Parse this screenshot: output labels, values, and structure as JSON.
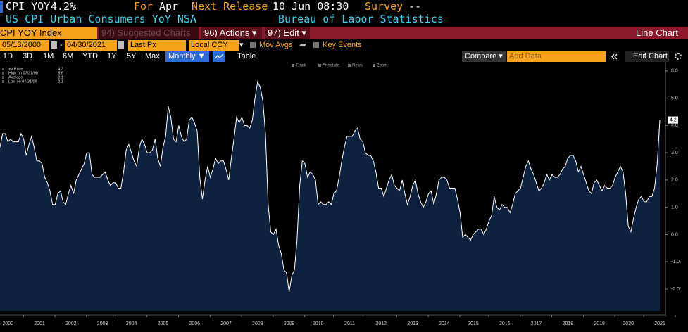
{
  "header": {
    "ticker": "CPI YOY",
    "value": "4.2%",
    "for_label": "For",
    "for_value": "Apr",
    "next_label": "Next Release",
    "next_value": "10 Jun 08:30",
    "survey_label": "Survey",
    "survey_value": "--",
    "description": "US CPI Urban Consumers YoY NSA",
    "source": "Bureau of Labor Statistics"
  },
  "toolbar": {
    "security": "CPI YOY Index",
    "suggested": "94) Suggested Charts",
    "actions": "96) Actions ▾",
    "edit": "97) Edit ▾",
    "chart_type": "Line Chart"
  },
  "settings": {
    "start_date": "05/13/2000",
    "dash": "-",
    "end_date": "04/30/2021",
    "field": "Last Px",
    "currency": "Local CCY",
    "currency_arrow": "▾",
    "mov_avgs": "Mov Avgs",
    "key_events": "Key Events"
  },
  "ranges": {
    "buttons": [
      "1D",
      "3D",
      "1M",
      "6M",
      "YTD",
      "1Y",
      "5Y",
      "Max"
    ],
    "period": "Monthly ▼",
    "table": "Table",
    "compare": "Compare ▾",
    "add_data": "Add Data",
    "edit_chart": "Edit Chart"
  },
  "chart_tools": [
    "Track",
    "Annotate",
    "News",
    "Zoom"
  ],
  "stats": [
    {
      "label": "Last Price",
      "value": "4.2"
    },
    {
      "label": "High on 07/31/08",
      "value": "5.6"
    },
    {
      "label": "Average",
      "value": "2.1"
    },
    {
      "label": "Low on 07/31/09",
      "value": "-2.1"
    }
  ],
  "chart_data": {
    "type": "area",
    "color": "#ffffff",
    "fill": "#0e2240",
    "grid": false,
    "ylim": [
      -2.8,
      6.15
    ],
    "yticks": [
      {
        "value": 6,
        "label": "6.0"
      },
      {
        "value": 5,
        "label": "5.0"
      },
      {
        "value": 4,
        "label": "4.0"
      },
      {
        "value": 3,
        "label": "3.0"
      },
      {
        "value": 2,
        "label": "2.0"
      },
      {
        "value": 1,
        "label": "1.0"
      },
      {
        "value": 0,
        "label": "0.0"
      },
      {
        "value": -1,
        "label": "-1.0"
      },
      {
        "value": -2,
        "label": "-2.0"
      }
    ],
    "categories": [
      null,
      null,
      null,
      "2000",
      null,
      null,
      null,
      null,
      null,
      null,
      null,
      null,
      null,
      null,
      null,
      "2001",
      null,
      null,
      null,
      null,
      null,
      null,
      null,
      null,
      null,
      null,
      null,
      "2002",
      null,
      null,
      null,
      null,
      null,
      null,
      null,
      null,
      null,
      null,
      null,
      "2003",
      null,
      null,
      null,
      null,
      null,
      null,
      null,
      null,
      null,
      null,
      "2004",
      null,
      null,
      null,
      null,
      null,
      null,
      null,
      null,
      null,
      null,
      null,
      "2005",
      null,
      null,
      null,
      null,
      null,
      null,
      null,
      null,
      null,
      null,
      null,
      "2006",
      null,
      null,
      null,
      null,
      null,
      null,
      null,
      null,
      null,
      null,
      null,
      "2007",
      null,
      null,
      null,
      null,
      null,
      null,
      null,
      null,
      null,
      null,
      null,
      "2008",
      null,
      null,
      null,
      null,
      null,
      null,
      null,
      null,
      null,
      null,
      null,
      "2009",
      null,
      null,
      null,
      null,
      null,
      null,
      null,
      null,
      null,
      null,
      "2010",
      null,
      null,
      null,
      null,
      null,
      null,
      null,
      null,
      null,
      null,
      null,
      "2011",
      null,
      null,
      null,
      null,
      null,
      null,
      null,
      null,
      null,
      null,
      null,
      "2012",
      null,
      null,
      null,
      null,
      null,
      null,
      null,
      null,
      null,
      null,
      null,
      "2013",
      null,
      null,
      null,
      null,
      null,
      null,
      null,
      null,
      null,
      null,
      null,
      "2014",
      null,
      null,
      null,
      null,
      null,
      null,
      null,
      null,
      null,
      null,
      "2015",
      null,
      null,
      null,
      null,
      null,
      null,
      null,
      null,
      null,
      null,
      null,
      "2016",
      null,
      null,
      null,
      null,
      null,
      null,
      null,
      null,
      null,
      null,
      null,
      "2017",
      null,
      null,
      null,
      null,
      null,
      null,
      null,
      null,
      null,
      null,
      null,
      "2018",
      null,
      null,
      null,
      null,
      null,
      null,
      null,
      null,
      null,
      null,
      null,
      "2019",
      null,
      null,
      null,
      null,
      null,
      null,
      null,
      null,
      null,
      null,
      "2020",
      null,
      null,
      null,
      null,
      null,
      null,
      null,
      null,
      null,
      null,
      null,
      "2021"
    ],
    "values": [
      3.2,
      3.7,
      3.7,
      3.4,
      3.5,
      3.4,
      3.4,
      3.4,
      3.7,
      3.5,
      2.9,
      3.3,
      3.6,
      3.2,
      2.7,
      2.7,
      2.6,
      2.1,
      1.9,
      1.6,
      1.1,
      1.1,
      1.5,
      1.6,
      1.2,
      1.1,
      1.5,
      1.8,
      1.5,
      2.0,
      2.2,
      2.4,
      2.6,
      3.0,
      3.0,
      2.2,
      2.1,
      2.1,
      2.1,
      2.2,
      2.3,
      2.0,
      1.8,
      1.9,
      1.9,
      1.7,
      1.7,
      2.3,
      3.1,
      3.3,
      3.0,
      2.7,
      2.5,
      3.2,
      3.5,
      3.3,
      3.0,
      3.0,
      3.1,
      3.5,
      2.8,
      2.5,
      3.2,
      3.6,
      4.7,
      4.3,
      3.5,
      3.4,
      4.0,
      3.6,
      3.4,
      3.5,
      4.2,
      4.3,
      4.1,
      3.8,
      2.1,
      1.3,
      2.0,
      2.5,
      2.1,
      2.4,
      2.8,
      2.6,
      2.7,
      2.7,
      2.4,
      2.0,
      2.8,
      3.5,
      4.3,
      4.1,
      4.3,
      4.0,
      4.0,
      3.9,
      4.2,
      5.0,
      5.6,
      5.4,
      4.9,
      3.7,
      1.1,
      0.1,
      0.0,
      0.2,
      -0.4,
      -0.7,
      -1.3,
      -1.4,
      -2.1,
      -1.5,
      -1.3,
      -0.2,
      1.8,
      2.7,
      2.6,
      2.1,
      2.3,
      2.2,
      2.0,
      1.1,
      1.2,
      1.1,
      1.1,
      1.2,
      1.1,
      1.5,
      1.6,
      2.1,
      2.7,
      3.2,
      3.6,
      3.6,
      3.6,
      3.8,
      3.9,
      3.5,
      3.4,
      3.0,
      2.9,
      2.9,
      2.7,
      2.3,
      1.7,
      1.7,
      1.4,
      1.7,
      2.0,
      2.2,
      1.8,
      1.7,
      1.6,
      2.0,
      1.5,
      1.1,
      1.4,
      1.8,
      2.0,
      1.5,
      1.2,
      1.0,
      1.2,
      1.5,
      1.6,
      1.1,
      1.5,
      2.0,
      2.1,
      2.1,
      2.0,
      1.7,
      1.7,
      1.7,
      1.3,
      0.8,
      -0.1,
      0.0,
      -0.1,
      -0.2,
      0.0,
      0.1,
      0.2,
      0.2,
      0.0,
      0.2,
      0.5,
      0.7,
      1.4,
      1.0,
      0.9,
      1.1,
      1.0,
      1.0,
      0.8,
      1.1,
      1.5,
      1.6,
      1.7,
      2.1,
      2.5,
      2.7,
      2.4,
      2.2,
      1.9,
      1.6,
      1.7,
      1.9,
      2.2,
      2.0,
      2.2,
      2.1,
      2.1,
      2.2,
      2.4,
      2.5,
      2.8,
      2.9,
      2.9,
      2.7,
      2.3,
      2.5,
      2.2,
      1.9,
      1.6,
      1.5,
      1.9,
      2.0,
      1.8,
      1.6,
      1.8,
      1.7,
      1.7,
      1.8,
      2.1,
      2.3,
      2.5,
      2.3,
      1.5,
      0.3,
      0.1,
      0.6,
      1.0,
      1.3,
      1.4,
      1.2,
      1.2,
      1.4,
      1.4,
      1.7,
      2.6,
      4.2
    ]
  }
}
